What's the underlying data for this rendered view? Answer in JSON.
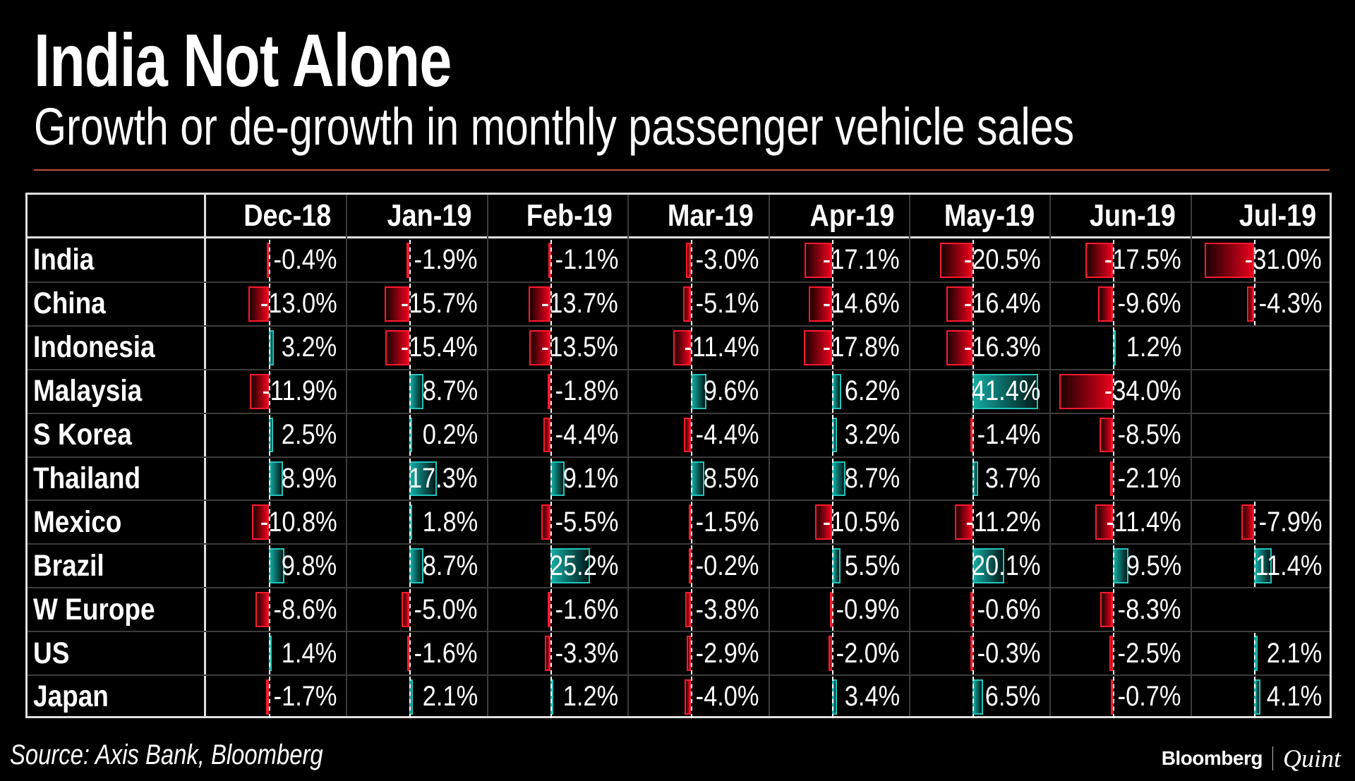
{
  "header": {
    "title": "India Not Alone",
    "subtitle": "Growth or de-growth in monthly passenger vehicle sales"
  },
  "footer": {
    "source": "Source: Axis Bank, Bloomberg",
    "logo_left": "Bloomberg",
    "logo_right": "Quint"
  },
  "colors": {
    "background": "#000000",
    "positive": "#14aaa2",
    "negative": "#e8001c",
    "rule": "#c0503c"
  },
  "chart_data": {
    "type": "table",
    "title": "India Not Alone",
    "subtitle": "Growth or de-growth in monthly passenger vehicle sales",
    "unit": "%",
    "columns": [
      "Dec-18",
      "Jan-19",
      "Feb-19",
      "Mar-19",
      "Apr-19",
      "May-19",
      "Jun-19",
      "Jul-19"
    ],
    "rows": [
      {
        "country": "India",
        "values": [
          -0.4,
          -1.9,
          -1.1,
          -3.0,
          -17.1,
          -20.5,
          -17.5,
          -31.0
        ]
      },
      {
        "country": "China",
        "values": [
          -13.0,
          -15.7,
          -13.7,
          -5.1,
          -14.6,
          -16.4,
          -9.6,
          -4.3
        ]
      },
      {
        "country": "Indonesia",
        "values": [
          3.2,
          -15.4,
          -13.5,
          -11.4,
          -17.8,
          -16.3,
          1.2,
          null
        ]
      },
      {
        "country": "Malaysia",
        "values": [
          -11.9,
          8.7,
          -1.8,
          9.6,
          6.2,
          41.4,
          -34.0,
          null
        ]
      },
      {
        "country": "S Korea",
        "values": [
          2.5,
          0.2,
          -4.4,
          -4.4,
          3.2,
          -1.4,
          -8.5,
          null
        ]
      },
      {
        "country": "Thailand",
        "values": [
          8.9,
          17.3,
          9.1,
          8.5,
          8.7,
          3.7,
          -2.1,
          null
        ]
      },
      {
        "country": "Mexico",
        "values": [
          -10.8,
          1.8,
          -5.5,
          -1.5,
          -10.5,
          -11.2,
          -11.4,
          -7.9
        ]
      },
      {
        "country": "Brazil",
        "values": [
          9.8,
          8.7,
          25.2,
          -0.2,
          5.5,
          20.1,
          9.5,
          11.4
        ]
      },
      {
        "country": "W Europe",
        "values": [
          -8.6,
          -5.0,
          -1.6,
          -3.8,
          -0.9,
          -0.6,
          -8.3,
          null
        ]
      },
      {
        "country": "US",
        "values": [
          1.4,
          -1.6,
          -3.3,
          -2.9,
          -2.0,
          -0.3,
          -2.5,
          2.1
        ]
      },
      {
        "country": "Japan",
        "values": [
          -1.7,
          2.1,
          1.2,
          -4.0,
          3.4,
          6.5,
          -0.7,
          4.1
        ]
      }
    ],
    "source": "Source: Axis Bank, Bloomberg"
  }
}
